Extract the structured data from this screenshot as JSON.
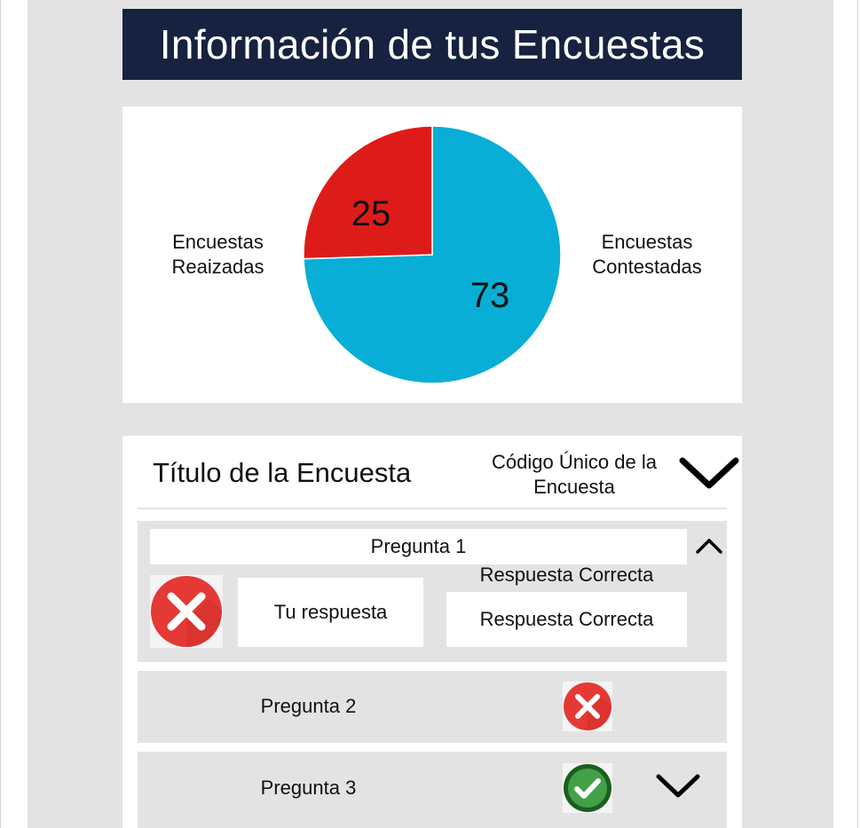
{
  "header": {
    "title": "Información de tus Encuestas"
  },
  "chart_data": {
    "type": "pie",
    "slices": [
      {
        "label": "Encuestas Contestadas",
        "value": 73,
        "color": "#08aed6"
      },
      {
        "label": "Encuestas Reaizadas",
        "value": 25,
        "color": "#dd1c1a"
      }
    ],
    "data_labels": [
      "73",
      "25"
    ],
    "legend": [
      "Encuestas Reaizadas",
      "Encuestas Contestadas"
    ]
  },
  "chart_labels": {
    "left_line1": "Encuestas",
    "left_line2": "Reaizadas",
    "right_line1": "Encuestas",
    "right_line2": "Contestadas",
    "value_red": "25",
    "value_blue": "73"
  },
  "survey": {
    "title": "Título de la Encuesta",
    "code_line1": "Código Único de la",
    "code_line2": "Encuesta",
    "questions": [
      {
        "label": "Pregunta 1",
        "status": "incorrect",
        "your_answer": "Tu respuesta",
        "correct_answer_label": "Respuesta Correcta",
        "correct_answer": "Respuesta Correcta"
      },
      {
        "label": "Pregunta 2",
        "status": "incorrect"
      },
      {
        "label": "Pregunta 3",
        "status": "correct"
      }
    ]
  },
  "icons": {
    "incorrect": "x-circle-icon",
    "correct": "check-circle-icon",
    "expand": "chevron-down-icon",
    "collapse": "chevron-up-icon"
  },
  "colors": {
    "header_bg": "#16223f",
    "pie_blue": "#08aed6",
    "pie_red": "#dd1c1a",
    "error_red": "#e53935",
    "success_green": "#2e7d32"
  }
}
